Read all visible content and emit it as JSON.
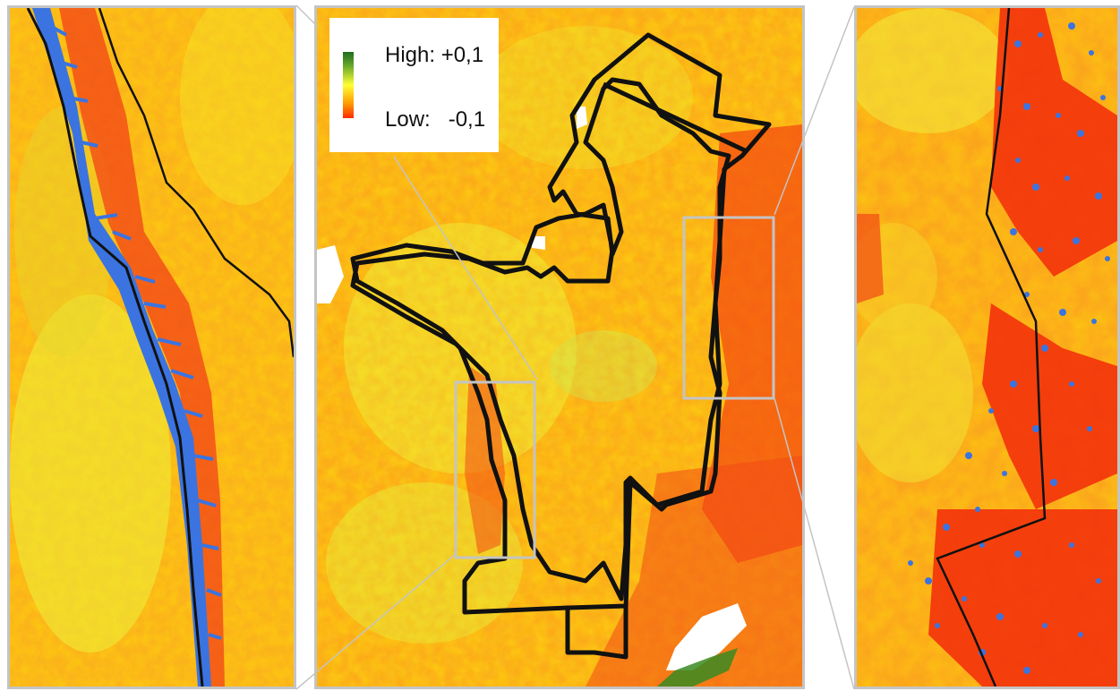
{
  "legend": {
    "high_label": "High: +0,1",
    "low_label": "Low:   -0,1",
    "colors": {
      "high": "#1f6b1f",
      "mid": "#ffff33",
      "low": "#ff2a00"
    }
  },
  "panels": {
    "left": {
      "content": "zoomed-view-west-boundary",
      "feature_color": "#3b74e0"
    },
    "center": {
      "content": "overview-map",
      "boundary_color": "#000000"
    },
    "right": {
      "content": "zoomed-view-east-boundary",
      "feature_color": "#3b74e0"
    }
  },
  "frame_color": "#c4c4c4"
}
